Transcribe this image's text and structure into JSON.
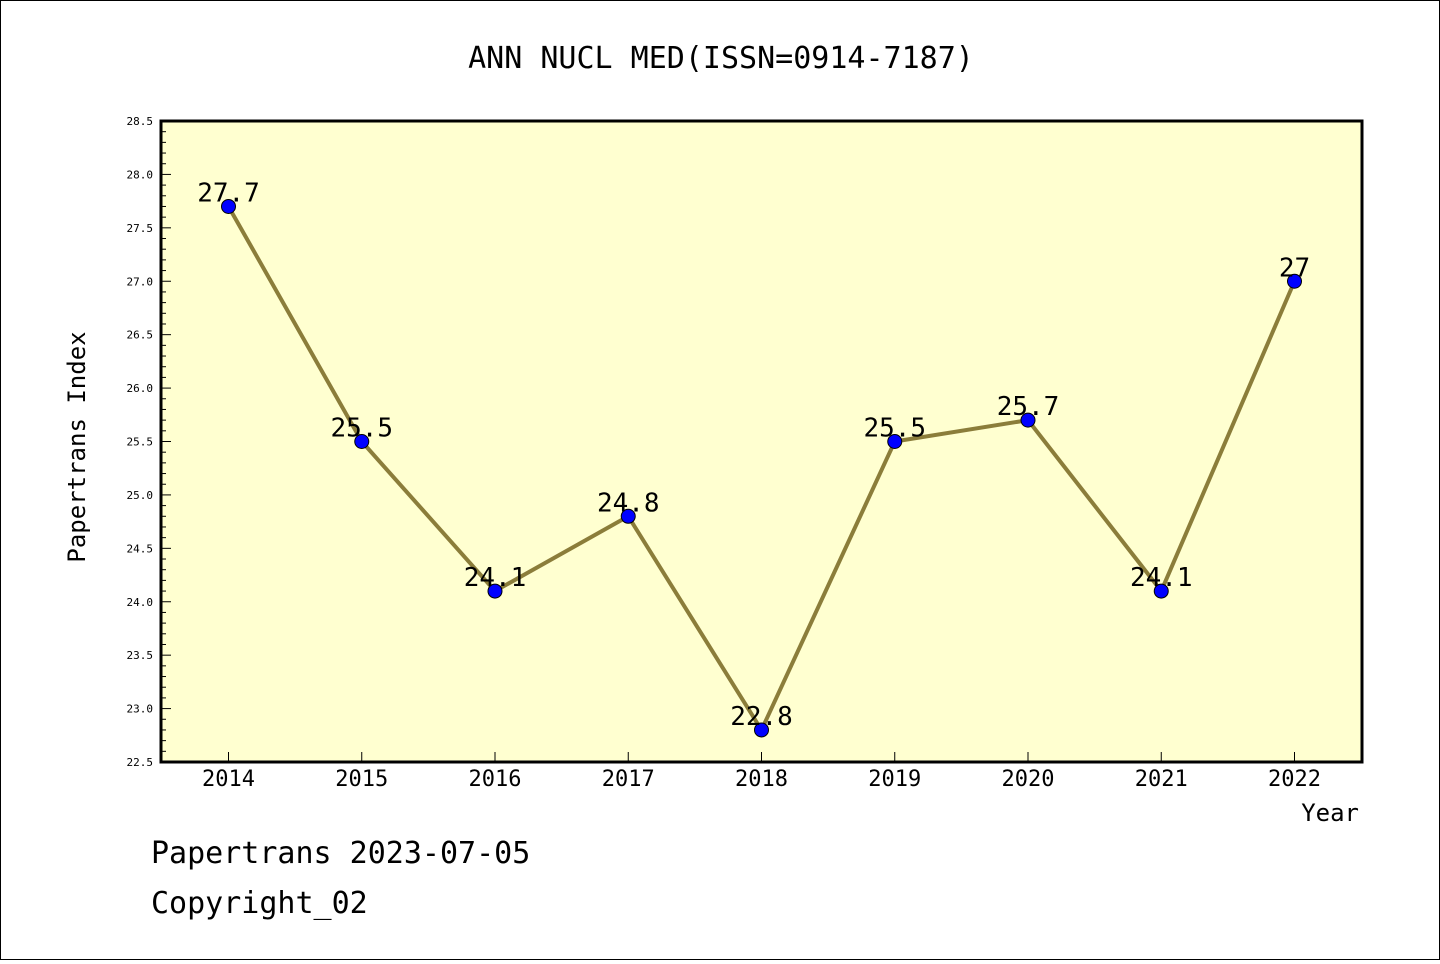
{
  "chart_data": {
    "type": "line",
    "title": "ANN NUCL MED(ISSN=0914-7187)",
    "xlabel": "Year",
    "ylabel": "Papertrans Index",
    "categories": [
      "2014",
      "2015",
      "2016",
      "2017",
      "2018",
      "2019",
      "2020",
      "2021",
      "2022"
    ],
    "values": [
      27.7,
      25.5,
      24.1,
      24.8,
      22.8,
      25.5,
      25.7,
      24.1,
      27
    ],
    "data_labels": [
      "27.7",
      "25.5",
      "24.1",
      "24.8",
      "22.8",
      "25.5",
      "25.7",
      "24.1",
      "27"
    ],
    "ylim": [
      22.5,
      28.5
    ],
    "yticks": [
      "22.5",
      "23.0",
      "23.5",
      "24.0",
      "24.5",
      "25.0",
      "25.5",
      "26.0",
      "26.5",
      "27.0",
      "27.5",
      "28.0",
      "28.5"
    ],
    "grid": false,
    "legend": "none",
    "colors": {
      "plot_background": "#ffffd0",
      "line": "#8b7d3a",
      "marker": "#0000ff"
    }
  },
  "footer": {
    "line1": "Papertrans 2023-07-05",
    "line2": "Copyright_02"
  }
}
